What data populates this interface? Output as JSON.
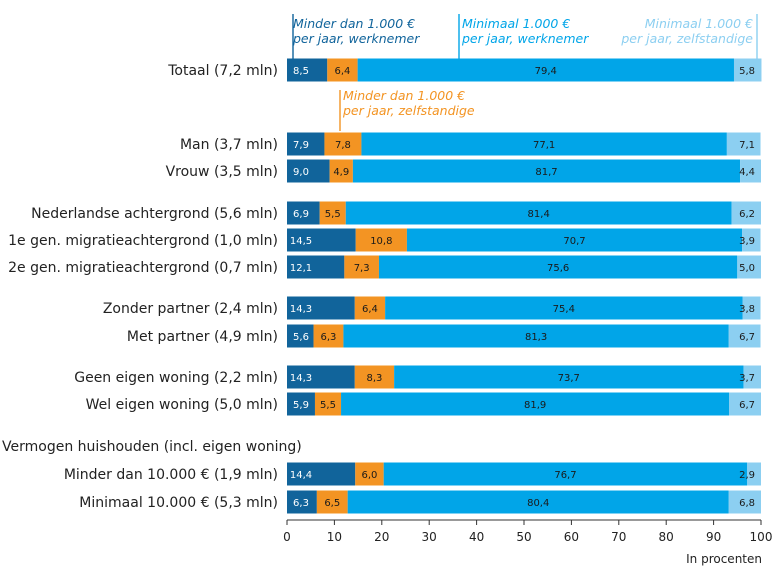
{
  "chart_data": {
    "type": "bar",
    "orientation": "horizontal",
    "stacked": true,
    "xlabel": "In procenten",
    "xlim": [
      0,
      100
    ],
    "xticks": [
      "0",
      "10",
      "20",
      "30",
      "40",
      "50",
      "60",
      "70",
      "80",
      "90",
      "100"
    ],
    "grid": false,
    "legend_placement": "top",
    "group_label": "Vermogen huishouden (incl. eigen woning)",
    "series": [
      {
        "name": "Minder dan 1.000 € per jaar, werknemer",
        "label_lines": [
          "Minder dan 1.000 €",
          "per jaar, werknemer"
        ],
        "color": "#11649b"
      },
      {
        "name": "Minder dan 1.000 € per jaar, zelfstandige",
        "label_lines": [
          "Minder dan 1.000 €",
          "per jaar, zelfstandige"
        ],
        "color": "#f39423"
      },
      {
        "name": "Minimaal 1.000 € per jaar, werknemer",
        "label_lines": [
          "Minimaal 1.000 €",
          "per jaar, werknemer"
        ],
        "color": "#01a5e8"
      },
      {
        "name": "Minimaal 1.000 € per jaar, zelfstandige",
        "label_lines": [
          "Minimaal 1.000 €",
          "per jaar, zelfstandige"
        ],
        "color": "#8ccff1"
      }
    ],
    "rows": [
      {
        "label": "Totaal (7,2 mln)",
        "values": [
          8.5,
          6.4,
          79.4,
          5.8
        ],
        "labels": [
          "8,5",
          "6,4",
          "79,4",
          "5,8"
        ]
      },
      {
        "label": "Man (3,7 mln)",
        "values": [
          7.9,
          7.8,
          77.1,
          7.1
        ],
        "labels": [
          "7,9",
          "7,8",
          "77,1",
          "7,1"
        ]
      },
      {
        "label": "Vrouw (3,5 mln)",
        "values": [
          9.0,
          4.9,
          81.7,
          4.4
        ],
        "labels": [
          "9,0",
          "4,9",
          "81,7",
          "4,4"
        ]
      },
      {
        "label": "Nederlandse achtergrond (5,6 mln)",
        "values": [
          6.9,
          5.5,
          81.4,
          6.2
        ],
        "labels": [
          "6,9",
          "5,5",
          "81,4",
          "6,2"
        ]
      },
      {
        "label": "1e gen. migratieachtergrond (1,0 mln)",
        "values": [
          14.5,
          10.8,
          70.7,
          3.9
        ],
        "labels": [
          "14,5",
          "10,8",
          "70,7",
          "3,9"
        ]
      },
      {
        "label": "2e gen. migratieachtergrond (0,7 mln)",
        "values": [
          12.1,
          7.3,
          75.6,
          5.0
        ],
        "labels": [
          "12,1",
          "7,3",
          "75,6",
          "5,0"
        ]
      },
      {
        "label": "Zonder partner (2,4 mln)",
        "values": [
          14.3,
          6.4,
          75.4,
          3.8
        ],
        "labels": [
          "14,3",
          "6,4",
          "75,4",
          "3,8"
        ]
      },
      {
        "label": "Met partner (4,9 mln)",
        "values": [
          5.6,
          6.3,
          81.3,
          6.7
        ],
        "labels": [
          "5,6",
          "6,3",
          "81,3",
          "6,7"
        ]
      },
      {
        "label": "Geen eigen woning (2,2 mln)",
        "values": [
          14.3,
          8.3,
          73.7,
          3.7
        ],
        "labels": [
          "14,3",
          "8,3",
          "73,7",
          "3,7"
        ]
      },
      {
        "label": "Wel eigen woning (5,0 mln)",
        "values": [
          5.9,
          5.5,
          81.9,
          6.7
        ],
        "labels": [
          "5,9",
          "5,5",
          "81,9",
          "6,7"
        ]
      },
      {
        "label": "Minder dan 10.000 € (1,9 mln)",
        "values": [
          14.4,
          6.0,
          76.7,
          2.9
        ],
        "labels": [
          "14,4",
          "6,0",
          "76,7",
          "2,9"
        ]
      },
      {
        "label": "Minimaal 10.000 € (5,3 mln)",
        "values": [
          6.3,
          6.5,
          80.4,
          6.8
        ],
        "labels": [
          "6,3",
          "6,5",
          "80,4",
          "6,8"
        ]
      }
    ]
  }
}
